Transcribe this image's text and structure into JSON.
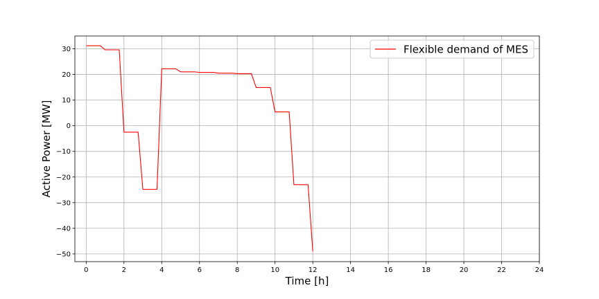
{
  "chart_data": {
    "type": "line",
    "title": "",
    "xlabel": "Time [h]",
    "ylabel": "Active Power [MW]",
    "xlim": [
      -0.6,
      24
    ],
    "ylim": [
      -53,
      35
    ],
    "xticks": [
      0,
      2,
      4,
      6,
      8,
      10,
      12,
      14,
      16,
      18,
      20,
      22,
      24
    ],
    "yticks": [
      -50,
      -40,
      -30,
      -20,
      -10,
      0,
      10,
      20,
      30
    ],
    "grid": true,
    "legend_position": "top-right",
    "series": [
      {
        "name": "Flexible demand of MES",
        "color": "#ff0000",
        "x": [
          0,
          0.75,
          1,
          1.75,
          2,
          2.75,
          3,
          3.75,
          4,
          4.75,
          5,
          5.75,
          6,
          6.75,
          7,
          7.75,
          8,
          8.75,
          9,
          9.75,
          10,
          10.75,
          11,
          11.75,
          12
        ],
        "y": [
          31.2,
          31.2,
          29.6,
          29.6,
          -2.5,
          -2.5,
          -24.8,
          -24.8,
          22.2,
          22.2,
          21.0,
          21.0,
          20.8,
          20.8,
          20.5,
          20.5,
          20.3,
          20.3,
          14.9,
          14.9,
          5.4,
          5.4,
          -23.0,
          -23.0,
          -49.0
        ]
      }
    ]
  }
}
